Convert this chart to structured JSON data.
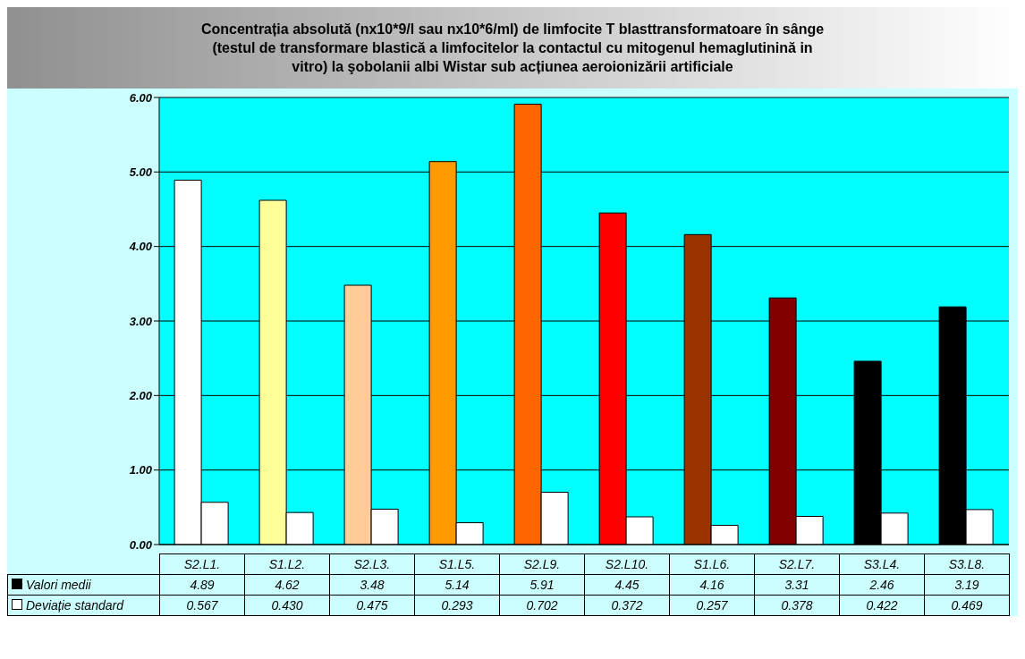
{
  "chart_data": {
    "type": "bar",
    "title": "Concentrația absolută (nx10*9/l sau nx10*6/ml) de limfocite T blasttransformatoare în sânge\n(testul de transformare blastică a limfocitelor la contactul cu mitogenul hemaglutinină in\nvitro) la şobolanii albi Wistar sub acțiunea aeroionizării artificiale",
    "categories": [
      "S2.L1.",
      "S1.L2.",
      "S2.L3.",
      "S1.L5.",
      "S2.L9.",
      "S2.L10.",
      "S1.L6.",
      "S2.L7.",
      "S3.L4.",
      "S3.L8."
    ],
    "series": [
      {
        "name": "Valori medii",
        "color": "#000000",
        "colors": [
          "#ffffff",
          "#ffff99",
          "#ffcc99",
          "#ff9900",
          "#ff6600",
          "#ff0000",
          "#993300",
          "#800000",
          "#000000",
          "#000000"
        ],
        "values": [
          4.89,
          4.62,
          3.48,
          5.14,
          5.91,
          4.45,
          4.16,
          3.31,
          2.46,
          3.19
        ],
        "value_labels": [
          "4.89",
          "4.62",
          "3.48",
          "5.14",
          "5.91",
          "4.45",
          "4.16",
          "3.31",
          "2.46",
          "3.19"
        ]
      },
      {
        "name": "Deviație standard",
        "color": "#ffffff",
        "values": [
          0.567,
          0.43,
          0.475,
          0.293,
          0.702,
          0.372,
          0.257,
          0.378,
          0.422,
          0.469
        ],
        "value_labels": [
          "0.567",
          "0.430",
          "0.475",
          "0.293",
          "0.702",
          "0.372",
          "0.257",
          "0.378",
          "0.422",
          "0.469"
        ]
      }
    ],
    "ylim": [
      0,
      6
    ],
    "yticks": [
      {
        "value": 0,
        "label": "0.00"
      },
      {
        "value": 1,
        "label": "1.00"
      },
      {
        "value": 2,
        "label": "2.00"
      },
      {
        "value": 3,
        "label": "3.00"
      },
      {
        "value": 4,
        "label": "4.00"
      },
      {
        "value": 5,
        "label": "5.00"
      },
      {
        "value": 6,
        "label": "6.00"
      }
    ],
    "grid": "y",
    "legend": "bottom"
  }
}
